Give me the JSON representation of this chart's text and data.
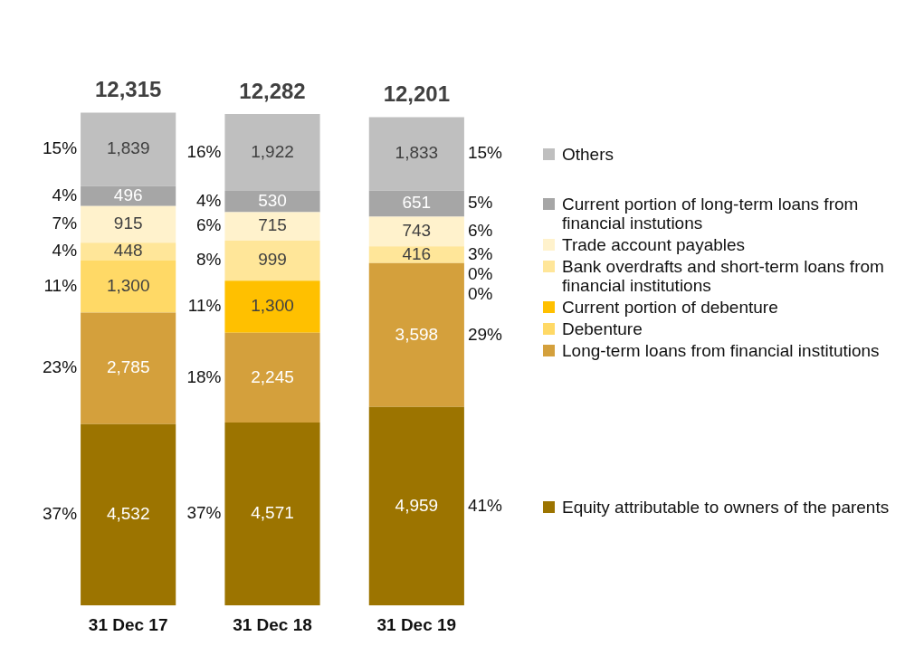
{
  "chart_data": {
    "type": "bar",
    "stacked": true,
    "categories": [
      "31 Dec 17",
      "31 Dec 18",
      "31 Dec 19"
    ],
    "series": [
      {
        "name": "Equity attributable to owners of the parents",
        "color": "#9c7400",
        "values": [
          4532,
          4571,
          4959
        ],
        "value_labels": [
          "4,532",
          "4,571",
          "4,959"
        ]
      },
      {
        "name": "Long-term loans from financial institutions",
        "color": "#d4a03c",
        "values": [
          2785,
          2245,
          3598
        ],
        "value_labels": [
          "2,785",
          "2,245",
          "3,598"
        ]
      },
      {
        "name": "Debenture",
        "color": "#ffd966",
        "values": [
          1300,
          0,
          0
        ],
        "value_labels": [
          "1,300",
          null,
          null
        ]
      },
      {
        "name": "Current portion of debenture",
        "color": "#ffc000",
        "values": [
          0,
          1300,
          0
        ],
        "value_labels": [
          null,
          "1,300",
          null
        ]
      },
      {
        "name": "Bank overdrafts and short-term loans from financial institutions",
        "color": "#ffe699",
        "values": [
          448,
          999,
          416
        ],
        "value_labels": [
          "448",
          "999",
          "416"
        ]
      },
      {
        "name": "Trade account payables",
        "color": "#fff2cc",
        "values": [
          915,
          715,
          743
        ],
        "value_labels": [
          "915",
          "715",
          "743"
        ]
      },
      {
        "name": "Current portion of long-term loans from financial instutions",
        "color": "#a6a6a6",
        "values": [
          496,
          530,
          651
        ],
        "value_labels": [
          "496",
          "530",
          "651"
        ]
      },
      {
        "name": "Others",
        "color": "#bfbfbf",
        "values": [
          1839,
          1922,
          1833
        ],
        "value_labels": [
          "1,839",
          "1,922",
          "1,833"
        ]
      }
    ],
    "totals": [
      "12,315",
      "12,282",
      "12,201"
    ],
    "legend": "right",
    "annotations": [
      "37%",
      "23%",
      "11%",
      "4%",
      "7%",
      "4%",
      "15%",
      "37%",
      "18%",
      "11%",
      "8%",
      "6%",
      "4%",
      "16%",
      "41%",
      "29%",
      "0%",
      "0%",
      "3%",
      "6%",
      "5%",
      "15%"
    ]
  }
}
